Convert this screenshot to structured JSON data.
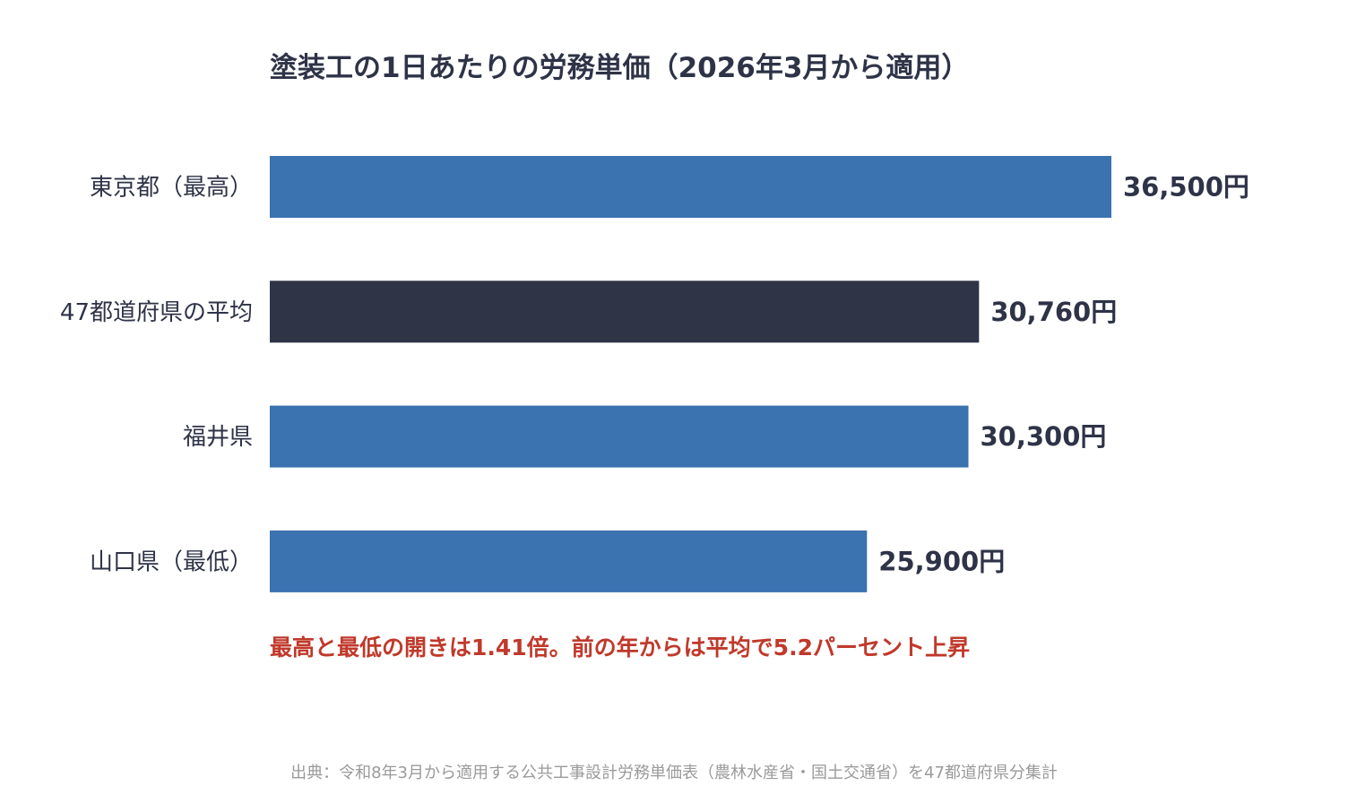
{
  "chart_data": {
    "type": "bar",
    "orientation": "horizontal",
    "title": "塗装工の1日あたりの労務単価（2026年3月から適用）",
    "categories": [
      "東京都（最高）",
      "47都道府県の平均",
      "福井県",
      "山口県（最低）"
    ],
    "values": [
      36500,
      30760,
      30300,
      25900
    ],
    "value_labels": [
      "36,500円",
      "30,760円",
      "30,300円",
      "25,900円"
    ],
    "unit": "円",
    "colors": [
      "#3b72b0",
      "#2f3447",
      "#3b72b0",
      "#3b72b0"
    ],
    "xlim": [
      0,
      36500
    ],
    "grid": false,
    "legend": "none",
    "annotation": "最高と最低の開きは1.41倍。前の年からは平均で5.2パーセント上昇",
    "source": "出典：令和8年3月から適用する公共工事設計労務単価表（農林水産省・国土交通省）を47都道府県分集計"
  },
  "colors": {
    "text": "#2e3347",
    "annotation": "#c0392b",
    "source": "#9a9a9a",
    "background": "#ffffff"
  }
}
